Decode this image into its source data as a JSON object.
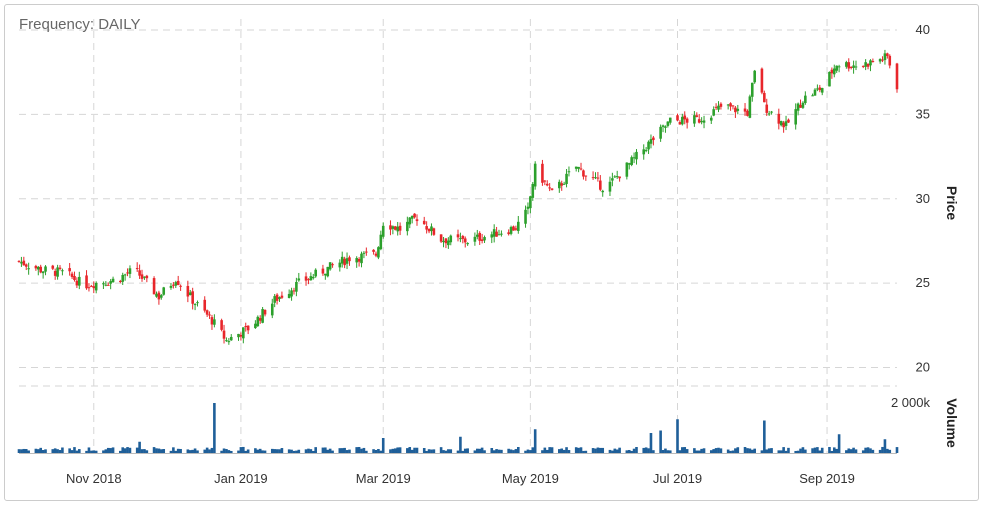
{
  "chart_data": {
    "type": "candlestick",
    "frequency_label": "Frequency: DAILY",
    "price_axis": {
      "title": "Price",
      "ticks": [
        20,
        25,
        30,
        35,
        40
      ],
      "ylim": [
        19.5,
        40
      ]
    },
    "volume_axis": {
      "title": "Volume",
      "tick_label": "2 000k",
      "tick_value": 2000,
      "ylim": [
        0,
        2000
      ],
      "unit": "k"
    },
    "x_axis": {
      "ticks": [
        {
          "label": "Nov 2018",
          "date": "2018-11-01"
        },
        {
          "label": "Jan 2019",
          "date": "2019-01-01"
        },
        {
          "label": "Mar 2019",
          "date": "2019-03-01"
        },
        {
          "label": "May 2019",
          "date": "2019-05-01"
        },
        {
          "label": "Jul 2019",
          "date": "2019-07-01"
        },
        {
          "label": "Sep 2019",
          "date": "2019-09-01"
        }
      ],
      "range": [
        "2018-10-01",
        "2019-09-30"
      ]
    },
    "grid": true,
    "up_color": "#2ca02c",
    "down_color": "#e8262b",
    "volume_color": "#1f5f99",
    "price_anchors": [
      [
        "2018-10-01",
        26.3
      ],
      [
        "2018-10-10",
        25.8
      ],
      [
        "2018-10-20",
        25.6
      ],
      [
        "2018-10-28",
        24.9
      ],
      [
        "2018-11-10",
        25.2
      ],
      [
        "2018-11-18",
        25.8
      ],
      [
        "2018-11-28",
        24.2
      ],
      [
        "2018-12-05",
        25.3
      ],
      [
        "2018-12-12",
        24.0
      ],
      [
        "2018-12-20",
        22.8
      ],
      [
        "2018-12-26",
        21.6
      ],
      [
        "2019-01-05",
        22.4
      ],
      [
        "2019-01-15",
        24.0
      ],
      [
        "2019-01-25",
        25.0
      ],
      [
        "2019-02-05",
        25.8
      ],
      [
        "2019-02-15",
        26.5
      ],
      [
        "2019-02-26",
        26.7
      ],
      [
        "2019-03-01",
        28.6
      ],
      [
        "2019-03-08",
        28.2
      ],
      [
        "2019-03-15",
        28.9
      ],
      [
        "2019-03-25",
        27.6
      ],
      [
        "2019-04-05",
        27.5
      ],
      [
        "2019-04-15",
        27.9
      ],
      [
        "2019-04-25",
        28.3
      ],
      [
        "2019-04-30",
        29.3
      ],
      [
        "2019-05-03",
        31.8
      ],
      [
        "2019-05-10",
        30.3
      ],
      [
        "2019-05-20",
        31.9
      ],
      [
        "2019-06-01",
        30.6
      ],
      [
        "2019-06-10",
        31.9
      ],
      [
        "2019-06-20",
        33.4
      ],
      [
        "2019-06-28",
        34.6
      ],
      [
        "2019-07-10",
        34.7
      ],
      [
        "2019-07-20",
        35.5
      ],
      [
        "2019-07-30",
        35.1
      ],
      [
        "2019-08-03",
        38.2
      ],
      [
        "2019-08-06",
        35.5
      ],
      [
        "2019-08-15",
        34.3
      ],
      [
        "2019-08-22",
        35.9
      ],
      [
        "2019-08-30",
        36.6
      ],
      [
        "2019-09-05",
        38.0
      ],
      [
        "2019-09-15",
        37.9
      ],
      [
        "2019-09-26",
        38.4
      ],
      [
        "2019-09-30",
        36.7
      ]
    ],
    "volume_baseline": 180,
    "volume_spikes": [
      [
        "2018-12-21",
        2000
      ],
      [
        "2019-07-01",
        1350
      ],
      [
        "2019-08-06",
        1300
      ],
      [
        "2019-09-06",
        750
      ],
      [
        "2019-05-03",
        950
      ],
      [
        "2019-06-20",
        800
      ],
      [
        "2019-03-01",
        600
      ],
      [
        "2019-04-02",
        650
      ],
      [
        "2018-11-20",
        450
      ],
      [
        "2019-06-24",
        900
      ],
      [
        "2019-09-25",
        550
      ]
    ]
  }
}
